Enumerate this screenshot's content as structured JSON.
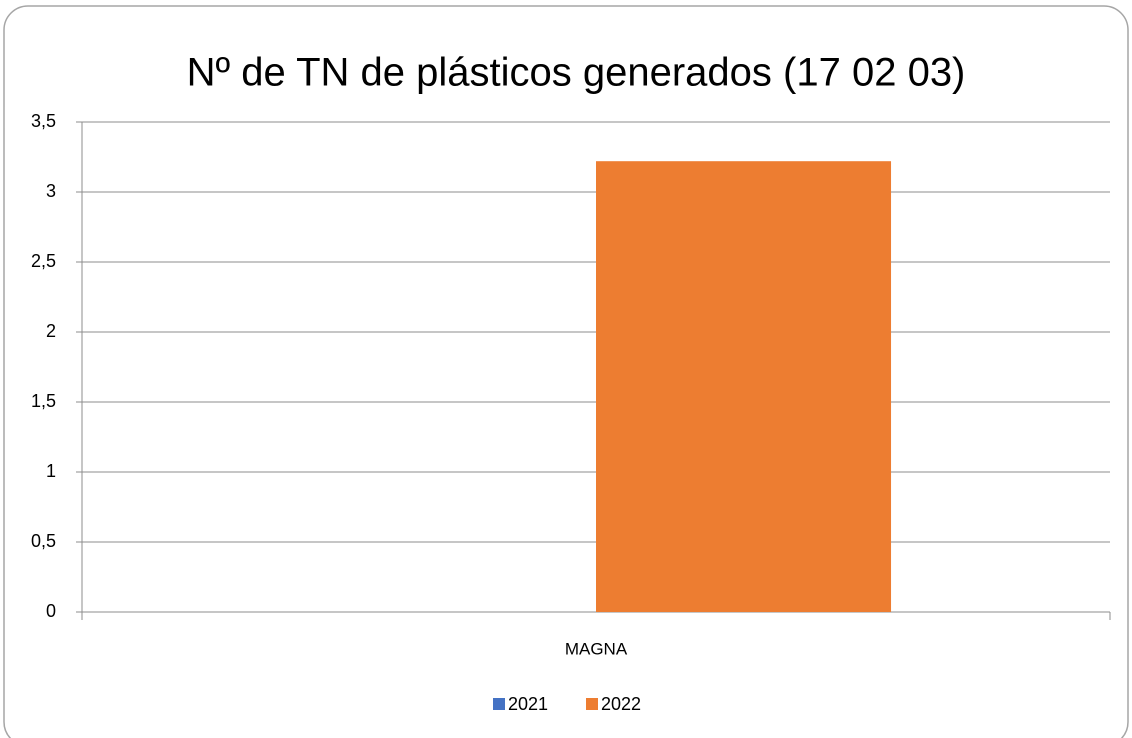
{
  "chart_data": {
    "type": "bar",
    "title": "Nº de TN de plásticos generados (17 02 03)",
    "categories": [
      "MAGNA"
    ],
    "series": [
      {
        "name": "2021",
        "color": "#4472c4",
        "values": [
          0
        ]
      },
      {
        "name": "2022",
        "color": "#ed7d31",
        "values": [
          3.22
        ]
      }
    ],
    "ylim": [
      0,
      3.5
    ],
    "yticks": [
      0,
      {
        "value": 0.5,
        "label": "0,5"
      },
      1,
      {
        "value": 1.5,
        "label": "1,5"
      },
      2,
      {
        "value": 2.5,
        "label": "2,5"
      },
      3,
      {
        "value": 3.5,
        "label": "3,5"
      }
    ],
    "grid": true,
    "legend": "bottom"
  }
}
